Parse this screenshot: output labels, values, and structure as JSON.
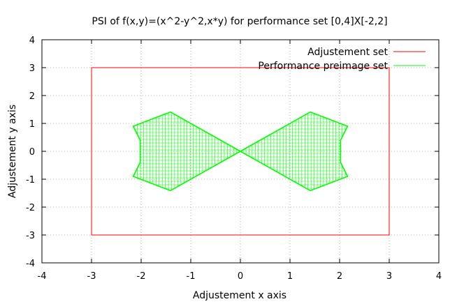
{
  "chart_data": {
    "type": "line",
    "title": "PSI of f(x,y)=(x^2-y^2,x*y) for performance set [0,4]X[-2,2]",
    "xlabel": "Adjustement x axis",
    "ylabel": "Adjustement y axis",
    "xlim": [
      -4,
      4
    ],
    "ylim": [
      -4,
      4
    ],
    "xticks": [
      "-4",
      "-3",
      "-2",
      "-1",
      "0",
      "1",
      "2",
      "3",
      "4"
    ],
    "yticks": [
      "-4",
      "-3",
      "-2",
      "-1",
      "0",
      "1",
      "2",
      "3",
      "4"
    ],
    "grid": true,
    "legend_position": "top-right",
    "series": [
      {
        "name": "Adjustement set",
        "color": "#ff0000",
        "x": [
          -3,
          3,
          3,
          -3,
          -3
        ],
        "y": [
          -3,
          -3,
          3,
          3,
          -3
        ]
      },
      {
        "name": "Performance preimage set",
        "color": "#00ff00",
        "x": [
          0,
          1.41,
          2.16,
          2.02,
          2.02,
          2.16,
          1.41,
          0,
          -1.41,
          -2.16,
          -2.02,
          -2.02,
          -2.16,
          -1.41,
          0
        ],
        "y": [
          0,
          1.41,
          0.9,
          0.4,
          -0.4,
          -0.9,
          -1.41,
          0,
          1.41,
          0.9,
          0.4,
          -0.4,
          -0.9,
          -1.41,
          0
        ]
      }
    ]
  }
}
